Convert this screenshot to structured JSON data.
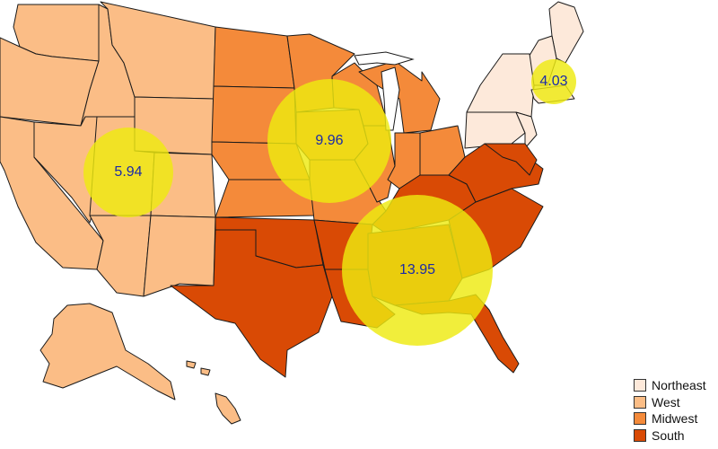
{
  "regions": [
    {
      "id": "northeast",
      "name": "Northeast",
      "color": "#fde9da"
    },
    {
      "id": "west",
      "name": "West",
      "color": "#fbbd86"
    },
    {
      "id": "midwest",
      "name": "Midwest",
      "color": "#f48a3a"
    },
    {
      "id": "south",
      "name": "South",
      "color": "#d94a05"
    }
  ],
  "bubble_color": "#eeea10",
  "label_color": "#1a2aa8",
  "bubbles": [
    {
      "region": "west",
      "value": "5.94"
    },
    {
      "region": "midwest",
      "value": "9.96"
    },
    {
      "region": "northeast",
      "value": "4.03"
    },
    {
      "region": "south",
      "value": "13.95"
    }
  ],
  "legend": {
    "items": [
      "Northeast",
      "West",
      "Midwest",
      "South"
    ]
  }
}
